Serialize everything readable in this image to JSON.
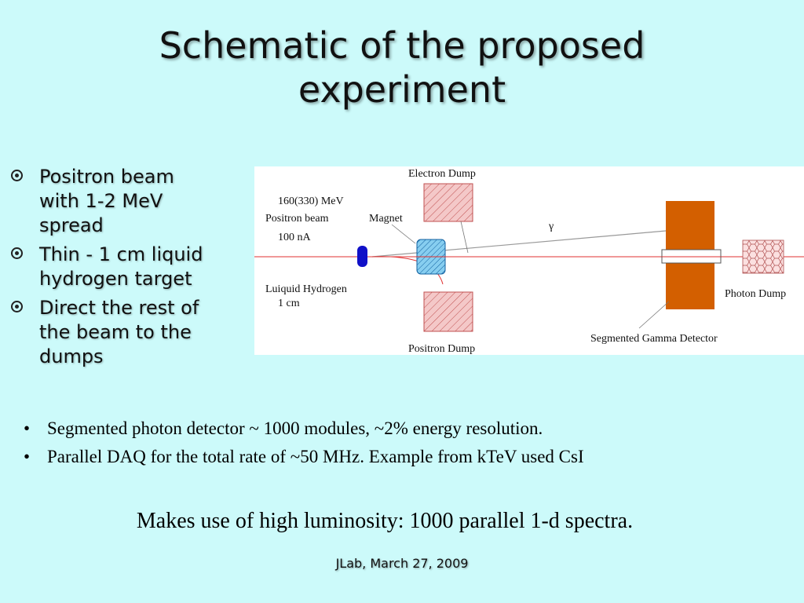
{
  "title": {
    "line1": "Schematic of the proposed",
    "line2": "experiment"
  },
  "left_bullets": [
    {
      "lines": [
        "Positron beam",
        "with 1-2 MeV",
        "spread"
      ]
    },
    {
      "lines": [
        "Thin - 1 cm liquid",
        "hydrogen target"
      ]
    },
    {
      "lines": [
        "Direct the rest of",
        "the beam  to the",
        "dumps"
      ]
    }
  ],
  "diagram": {
    "electron_dump": "Electron Dump",
    "beam_energy": "160(330) MeV",
    "beam_name": "Positron beam",
    "beam_current": "100 nA",
    "magnet": "Magnet",
    "gamma": "γ",
    "target_line1": "Luiquid Hydrogen",
    "target_line2": "1 cm",
    "positron_dump": "Positron Dump",
    "photon_dump": "Photon Dump",
    "detector": "Segmented Gamma Detector",
    "colors": {
      "beam": "#e03030",
      "target": "#1010c8",
      "magnet": "#87cef0",
      "dump": "#f4c8c8",
      "detector": "#d35f00"
    }
  },
  "lower_bullets": [
    "Segmented photon detector ~ 1000 modules, ~2% energy resolution.",
    "Parallel DAQ for the total rate of ~50 MHz.  Example from kTeV used CsI"
  ],
  "summary": "Makes use of high luminosity: 1000 parallel 1-d spectra.",
  "footer": "JLab, March 27, 2009"
}
